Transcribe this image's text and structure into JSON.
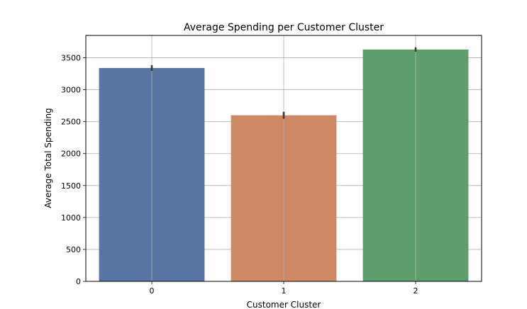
{
  "chart_data": {
    "type": "bar",
    "title": "Average Spending per Customer Cluster",
    "xlabel": "Customer Cluster",
    "ylabel": "Average Total Spending",
    "categories": [
      "0",
      "1",
      "2"
    ],
    "values": [
      3340,
      2600,
      3630
    ],
    "error_bars": [
      [
        3295,
        3385
      ],
      [
        2545,
        2655
      ],
      [
        3595,
        3665
      ]
    ],
    "colors": [
      "#5875a4",
      "#cc8963",
      "#5f9e6e"
    ],
    "ylim": [
      0,
      3850
    ],
    "yticks": [
      0,
      500,
      1000,
      1500,
      2000,
      2500,
      3000,
      3500
    ],
    "grid": true,
    "legend": "none"
  }
}
